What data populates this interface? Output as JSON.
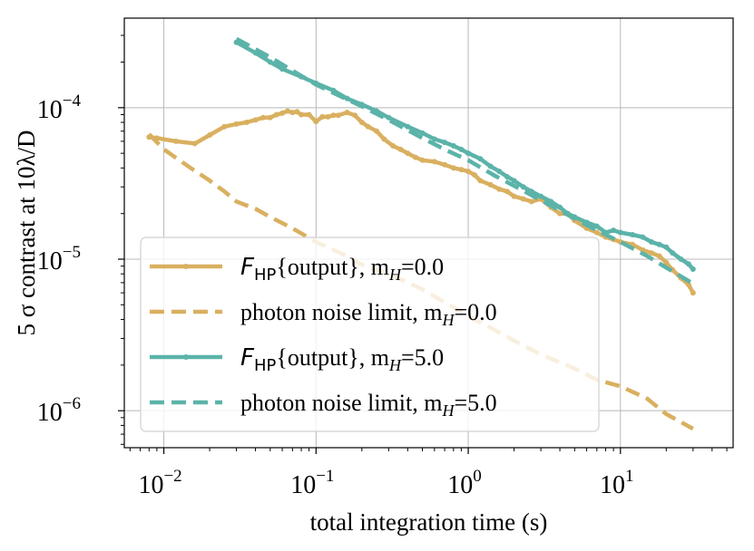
{
  "chart_data": {
    "type": "line",
    "title": "",
    "xlabel": "total integration time (s)",
    "ylabel": "5 σ contrast at 10λ/D",
    "xscale": "log",
    "yscale": "log",
    "xlim": [
      0.0055,
      55
    ],
    "ylim": [
      5.7e-07,
      0.00039
    ],
    "grid": true,
    "legend_position": "lower-left",
    "x_ticks": [
      {
        "value": 0.01,
        "base": "10",
        "exp": "−2"
      },
      {
        "value": 0.1,
        "base": "10",
        "exp": "−1"
      },
      {
        "value": 1,
        "base": "10",
        "exp": "0"
      },
      {
        "value": 10,
        "base": "10",
        "exp": "1"
      }
    ],
    "y_ticks": [
      {
        "value": 1e-06,
        "base": "10",
        "exp": "−6"
      },
      {
        "value": 1e-05,
        "base": "10",
        "exp": "−5"
      },
      {
        "value": 0.0001,
        "base": "10",
        "exp": "−4"
      }
    ],
    "series": [
      {
        "name": "F_HP{output}, m_H=0.0",
        "label_parts": {
          "main": "F",
          "sub": "HP",
          "rest": "{output}, m",
          "sub2": "H",
          "tail": "=0.0"
        },
        "color": "#d9b060",
        "style": "solid-markers",
        "x": [
          0.008,
          0.009,
          0.012,
          0.016,
          0.02,
          0.025,
          0.03,
          0.035,
          0.04,
          0.045,
          0.05,
          0.055,
          0.06,
          0.065,
          0.07,
          0.075,
          0.08,
          0.09,
          0.1,
          0.11,
          0.12,
          0.13,
          0.14,
          0.16,
          0.18,
          0.2,
          0.22,
          0.25,
          0.28,
          0.32,
          0.36,
          0.4,
          0.45,
          0.5,
          0.6,
          0.7,
          0.8,
          0.9,
          1.0,
          1.1,
          1.2,
          1.4,
          1.6,
          1.8,
          2.0,
          2.3,
          2.6,
          3.0,
          3.5,
          4.0,
          4.5,
          5.0,
          6.0,
          7.0,
          8.0,
          9.0,
          10.0,
          12.0,
          14.0,
          16.0,
          18.0,
          20.0,
          22.0,
          25.0,
          28.0,
          30.0
        ],
        "y": [
          6.4e-05,
          6.3e-05,
          6e-05,
          5.8e-05,
          6.6e-05,
          7.5e-05,
          7.8e-05,
          8e-05,
          8.3e-05,
          8.6e-05,
          8.6e-05,
          9e-05,
          9.2e-05,
          9.5e-05,
          9.3e-05,
          9.4e-05,
          9e-05,
          9e-05,
          8.1e-05,
          8.7e-05,
          8.7e-05,
          8.9e-05,
          8.9e-05,
          9.3e-05,
          8.9e-05,
          8e-05,
          7.5e-05,
          7e-05,
          6.2e-05,
          5.6e-05,
          5.3e-05,
          5e-05,
          4.7e-05,
          4.5e-05,
          4.4e-05,
          4.2e-05,
          4e-05,
          3.9e-05,
          3.8e-05,
          3.6e-05,
          3.3e-05,
          3.1e-05,
          2.9e-05,
          2.8e-05,
          2.6e-05,
          2.5e-05,
          2.4e-05,
          2.5e-05,
          2.2e-05,
          2e-05,
          2e-05,
          1.8e-05,
          1.6e-05,
          1.5e-05,
          1.4e-05,
          1.35e-05,
          1.3e-05,
          1.25e-05,
          1.15e-05,
          1.1e-05,
          1.05e-05,
          9.5e-06,
          8.5e-06,
          7.5e-06,
          6.8e-06,
          6e-06
        ]
      },
      {
        "name": "photon noise limit, m_H=0.0",
        "label_parts": {
          "main": "",
          "sub": "",
          "rest": "photon noise limit, m",
          "sub2": "H",
          "tail": "=0.0"
        },
        "color": "#d9b060",
        "style": "dashed",
        "x": [
          0.008,
          0.01,
          0.015,
          0.02,
          0.025,
          0.03,
          0.04,
          0.05,
          0.07,
          0.1,
          0.15,
          0.2,
          0.3,
          0.5,
          0.7,
          1.0,
          1.5,
          2.0,
          3.0,
          5.0,
          7.0,
          10.0,
          15.0,
          20.0,
          30.0
        ],
        "y": [
          6.7e-05,
          5.3e-05,
          4e-05,
          3.3e-05,
          2.8e-05,
          2.4e-05,
          2.15e-05,
          1.9e-05,
          1.6e-05,
          1.3e-05,
          1.08e-05,
          9.2e-06,
          8e-06,
          6.3e-06,
          5.2e-06,
          4.2e-06,
          3.4e-06,
          2.9e-06,
          2.35e-06,
          1.9e-06,
          1.6e-06,
          1.45e-06,
          1.2e-06,
          9.5e-07,
          7.6e-07
        ]
      },
      {
        "name": "F_HP{output}, m_H=5.0",
        "label_parts": {
          "main": "F",
          "sub": "HP",
          "rest": "{output}, m",
          "sub2": "H",
          "tail": "=5.0"
        },
        "color": "#5bb3a9",
        "style": "solid-markers",
        "x": [
          0.03,
          0.04,
          0.05,
          0.06,
          0.08,
          0.1,
          0.13,
          0.16,
          0.2,
          0.25,
          0.3,
          0.4,
          0.5,
          0.6,
          0.7,
          0.8,
          0.9,
          1.0,
          1.2,
          1.4,
          1.6,
          1.8,
          2.0,
          2.3,
          2.6,
          3.0,
          3.5,
          4.0,
          4.5,
          5.0,
          6.0,
          7.0,
          8.0,
          9.0,
          10.0,
          12.0,
          14.0,
          16.0,
          18.0,
          20.0,
          22.0,
          25.0,
          28.0,
          30.0
        ],
        "y": [
          0.00027,
          0.00023,
          0.0002,
          0.00018,
          0.00016,
          0.000145,
          0.00013,
          0.000115,
          0.000105,
          9.5e-05,
          8.6e-05,
          7.5e-05,
          6.8e-05,
          6.2e-05,
          5.9e-05,
          5.6e-05,
          5.3e-05,
          5e-05,
          4.6e-05,
          4.1e-05,
          3.8e-05,
          3.5e-05,
          3.3e-05,
          3e-05,
          2.8e-05,
          2.6e-05,
          2.4e-05,
          2.2e-05,
          2e-05,
          1.9e-05,
          1.75e-05,
          1.65e-05,
          1.5e-05,
          1.55e-05,
          1.5e-05,
          1.45e-05,
          1.4e-05,
          1.3e-05,
          1.25e-05,
          1.2e-05,
          1.1e-05,
          1e-05,
          9.3e-06,
          8.6e-06
        ]
      },
      {
        "name": "photon noise limit, m_H=5.0",
        "label_parts": {
          "main": "",
          "sub": "",
          "rest": "photon noise limit, m",
          "sub2": "H",
          "tail": "=5.0"
        },
        "color": "#5bb3a9",
        "style": "dashed",
        "x": [
          0.03,
          0.05,
          0.1,
          0.2,
          0.3,
          0.5,
          0.7,
          1.0,
          1.5,
          2.0,
          3.0,
          5.0,
          7.0,
          10.0,
          15.0,
          20.0,
          30.0
        ],
        "y": [
          0.000285,
          0.000215,
          0.000142,
          0.000102,
          8.3e-05,
          6.3e-05,
          5.3e-05,
          4.5e-05,
          3.55e-05,
          3.05e-05,
          2.45e-05,
          1.85e-05,
          1.55e-05,
          1.3e-05,
          1.05e-05,
          8.8e-06,
          6.9e-06
        ]
      }
    ]
  }
}
